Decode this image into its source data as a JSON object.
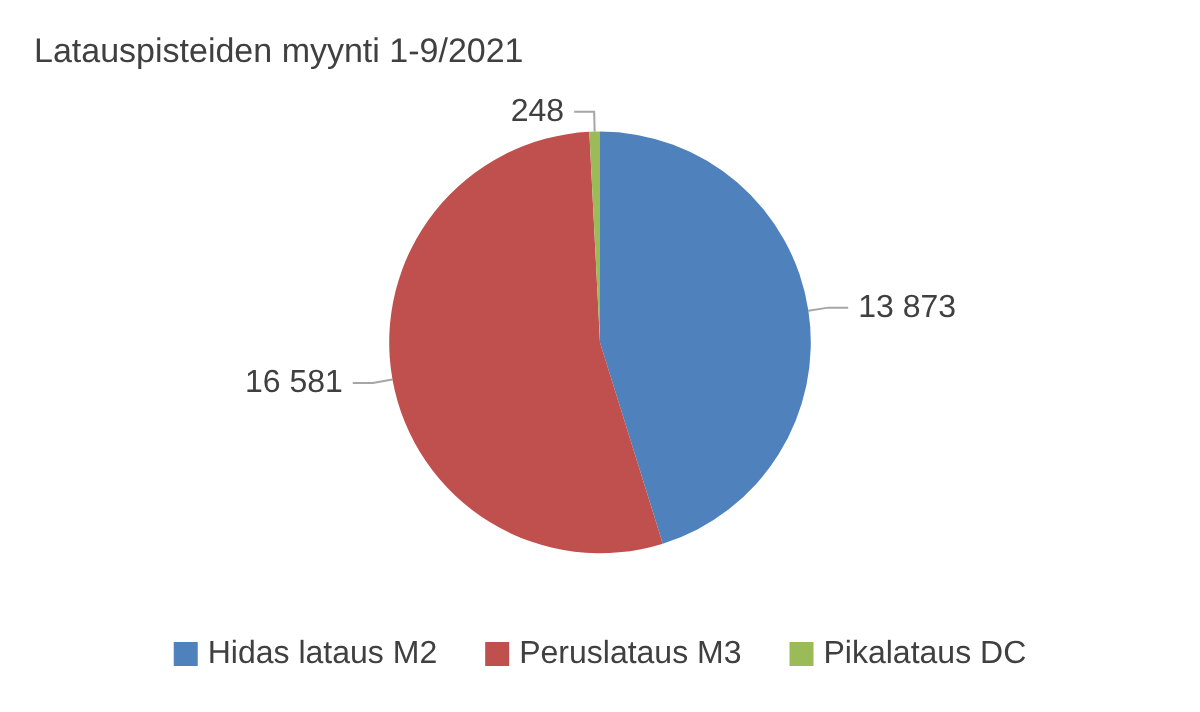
{
  "chart_data": {
    "type": "pie",
    "title": "Latauspisteiden myynti 1-9/2021",
    "categories": [
      "Hidas lataus M2",
      "Peruslataus M3",
      "Pikalataus DC"
    ],
    "values": [
      13873,
      16581,
      248
    ],
    "colors": [
      "#4f81bd",
      "#c0504d",
      "#9bbb59"
    ],
    "value_labels": [
      "13 873",
      "16 581",
      "248"
    ],
    "legend": "bottom"
  }
}
